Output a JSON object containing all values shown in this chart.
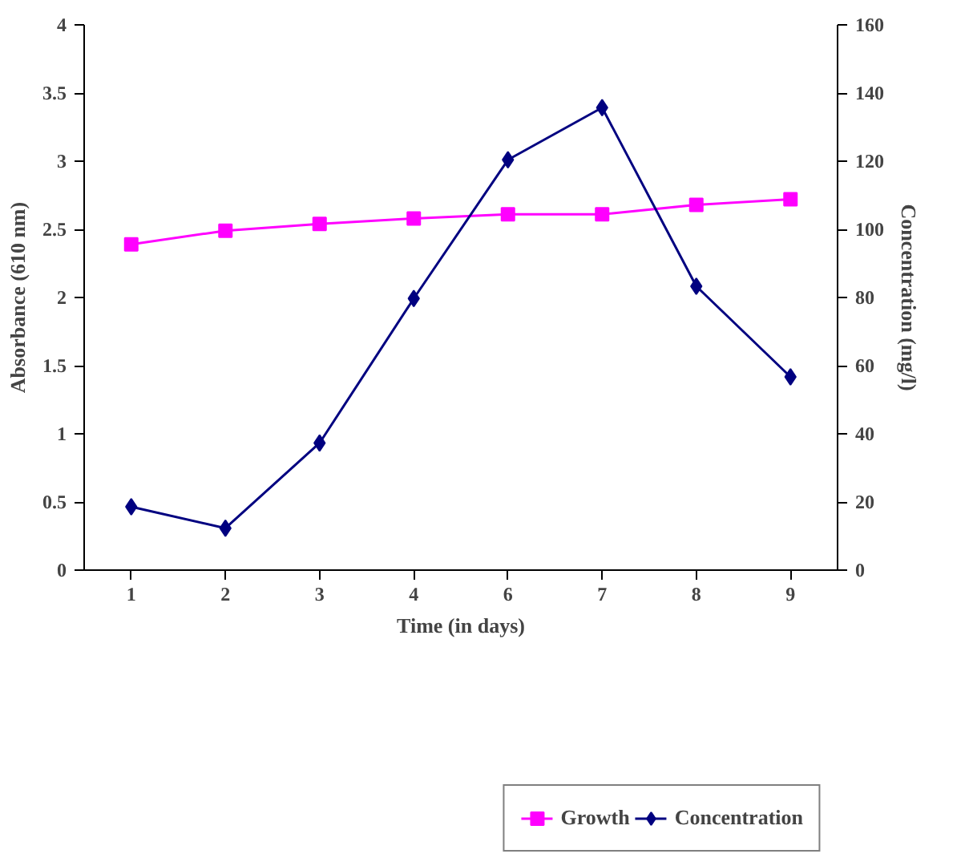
{
  "chart_data": {
    "type": "line",
    "xlabel": "Time (in days)",
    "ylabel": "Absorbance (610 nm)",
    "y2label": "Concentration (mg/l)",
    "categories": [
      "1",
      "2",
      "3",
      "4",
      "6",
      "7",
      "8",
      "9"
    ],
    "series": [
      {
        "name": "Growth",
        "color": "#ff00ff",
        "marker": "square",
        "values": [
          2.39,
          2.49,
          2.54,
          2.58,
          2.61,
          2.61,
          2.68,
          2.72
        ]
      },
      {
        "name": "Concentration",
        "color": "#000080",
        "marker": "diamond",
        "axis": "y2",
        "values": [
          18.6,
          12.3,
          37.3,
          79.7,
          120.4,
          135.7,
          83.3,
          56.7
        ]
      }
    ],
    "ylim": [
      0,
      4
    ],
    "yticks": [
      0,
      0.5,
      1,
      1.5,
      2,
      2.5,
      3,
      3.5,
      4
    ],
    "y2lim": [
      0,
      160
    ],
    "y2ticks": [
      0,
      20,
      40,
      60,
      80,
      100,
      120,
      140,
      160
    ],
    "grid": false,
    "legend": "bottom"
  }
}
